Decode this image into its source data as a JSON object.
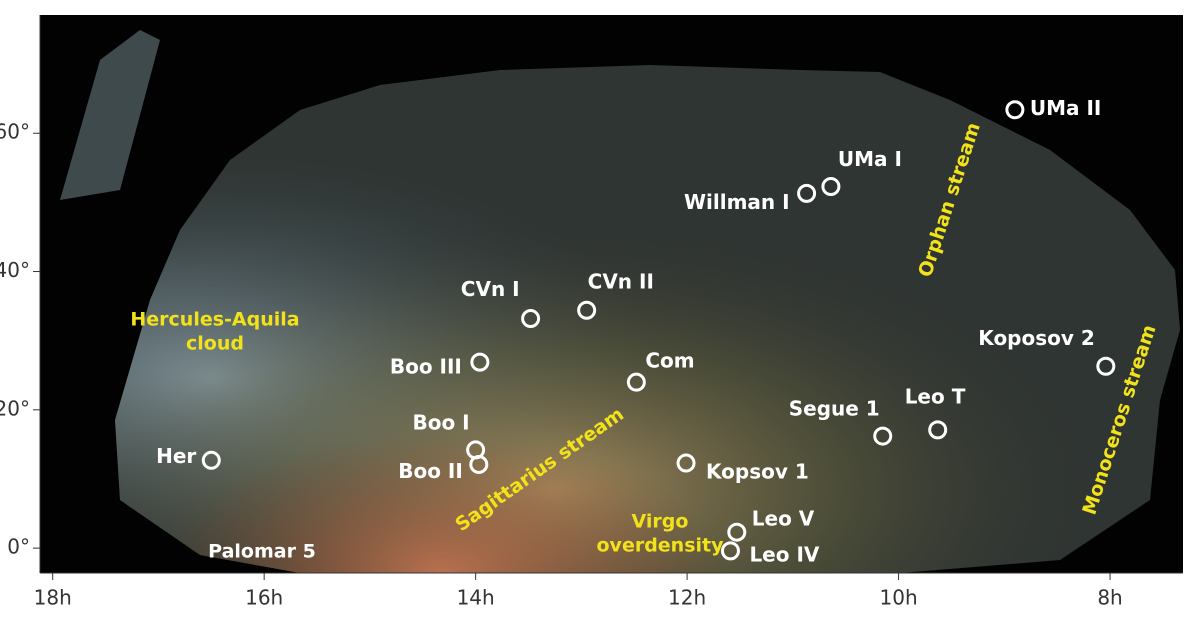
{
  "chart_data": {
    "type": "scatter",
    "xlim": [
      18.12,
      7.31
    ],
    "ylim": [
      -3.6,
      77.1
    ],
    "xticks": [
      {
        "value": 18,
        "label": "18h"
      },
      {
        "value": 16,
        "label": "16h"
      },
      {
        "value": 14,
        "label": "14h"
      },
      {
        "value": 12,
        "label": "12h"
      },
      {
        "value": 10,
        "label": "10h"
      },
      {
        "value": 8,
        "label": "8h"
      }
    ],
    "yticks": [
      {
        "value": 0,
        "label": "0°"
      },
      {
        "value": 20,
        "label": "20°"
      },
      {
        "value": 40,
        "label": "40°"
      },
      {
        "value": 60,
        "label": "60°"
      }
    ],
    "point_color": "#ffffff",
    "points": {
      "names": [
        "UMa II",
        "UMa I",
        "Willman I",
        "CVn I",
        "CVn II",
        "Boo III",
        "Com",
        "Koposov 2",
        "Segue 1",
        "Leo T",
        "Boo I",
        "Boo II",
        "Her",
        "Kopsov 1",
        "Leo V",
        "Leo IV"
      ],
      "x": [
        8.9,
        10.64,
        10.87,
        13.48,
        12.95,
        13.96,
        12.48,
        8.04,
        10.15,
        9.63,
        14.0,
        13.97,
        16.5,
        12.01,
        11.53,
        11.59
      ],
      "y": [
        63.4,
        52.3,
        51.3,
        33.2,
        34.4,
        26.9,
        24.0,
        26.3,
        16.2,
        17.1,
        14.2,
        12.1,
        12.7,
        12.3,
        2.3,
        -0.4
      ]
    },
    "annotations": [
      {
        "lines": [
          "Orphan stream"
        ],
        "color": "#f2e21a"
      },
      {
        "lines": [
          "Hercules-Aquila",
          "cloud"
        ],
        "color": "#f2e21a"
      },
      {
        "lines": [
          "Sagittarius stream"
        ],
        "color": "#f2e21a"
      },
      {
        "lines": [
          "Virgo",
          "overdensity"
        ],
        "color": "#f2e21a"
      },
      {
        "lines": [
          "Monoceros stream"
        ],
        "color": "#f2e21a"
      },
      {
        "lines": [
          "Palomar 5"
        ],
        "color": "#ffffff"
      }
    ]
  }
}
